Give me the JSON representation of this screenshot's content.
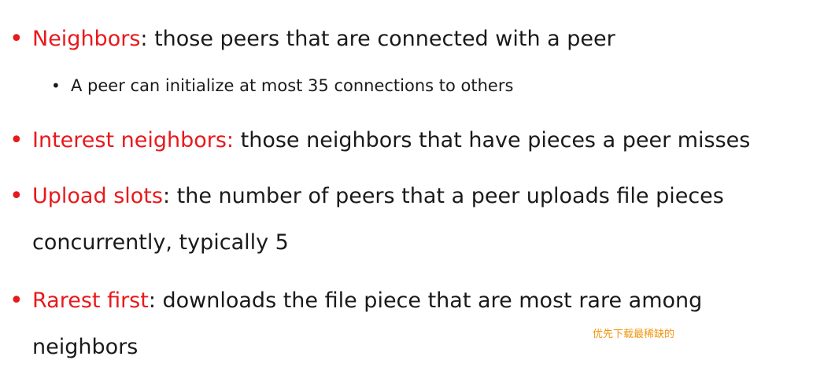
{
  "bullets": [
    {
      "term": "Neighbors",
      "rest_line1": ": those peers that are connected with a peer",
      "rest_line2": ""
    },
    {
      "term": "Interest neighbors:",
      "rest_line1": " those neighbors that have pieces a peer misses",
      "rest_line2": ""
    },
    {
      "term": "Upload slots",
      "rest_line1": ": the number of peers that a peer uploads file pieces",
      "rest_line2": "concurrently, typically 5"
    },
    {
      "term": "Rarest first",
      "rest_line1": ": downloads the file piece that are most rare among",
      "rest_line2": "neighbors"
    }
  ],
  "sub_bullets": [
    {
      "text": "A peer can initialize at most 35 connections to others"
    }
  ],
  "annotation": {
    "text": "优先下载最稀缺的"
  },
  "colors": {
    "term": "#e8191c",
    "body_text": "#1a1a1a",
    "annotation": "#f0960e"
  }
}
